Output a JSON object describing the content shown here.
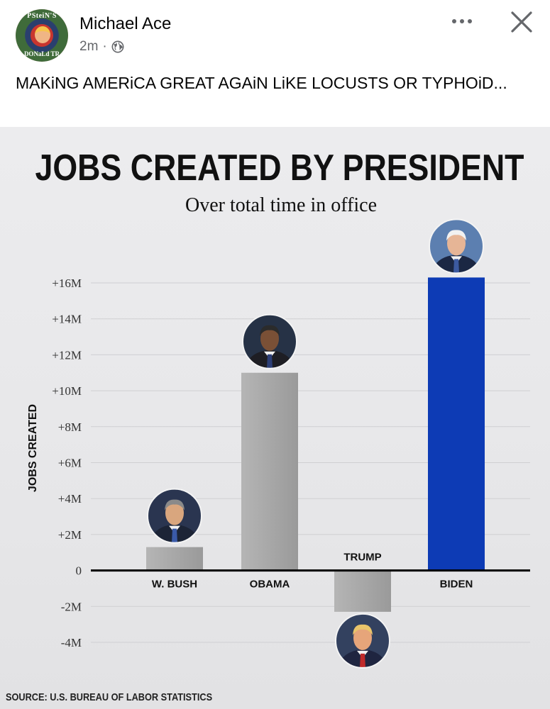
{
  "post": {
    "author": "Michael Ace",
    "time": "2m",
    "separator": "·",
    "audience_icon": "globe-icon",
    "text": "MAKiNG AMERiCA GREAT AGAiN LiKE LOCUSTS OR TYPHOiD...",
    "avatar": {
      "text_top": "PSteiN'S",
      "text_bottom": "DONaLd TR"
    }
  },
  "actions": {
    "more_icon": "more-icon",
    "close_icon": "close-icon"
  },
  "colors": {
    "gray_bar": "#a3a3a3",
    "biden_bar": "#0d3bb5",
    "gridline": "#cfcfd2",
    "axis": "#000000"
  },
  "chart_data": {
    "type": "bar",
    "title": "JOBS CREATED BY PRESIDENT",
    "subtitle": "Over total time in office",
    "ylabel": "JOBS CREATED",
    "xlabel": "",
    "source": "SOURCE: U.S. BUREAU OF LABOR STATISTICS",
    "ylim": [
      -4,
      16
    ],
    "yticks": [
      {
        "value": 16,
        "label": "+16M"
      },
      {
        "value": 14,
        "label": "+14M"
      },
      {
        "value": 12,
        "label": "+12M"
      },
      {
        "value": 10,
        "label": "+10M"
      },
      {
        "value": 8,
        "label": "+8M"
      },
      {
        "value": 6,
        "label": "+6M"
      },
      {
        "value": 4,
        "label": "+4M"
      },
      {
        "value": 2,
        "label": "+2M"
      },
      {
        "value": 0,
        "label": "0"
      },
      {
        "value": -2,
        "label": "-2M"
      },
      {
        "value": -4,
        "label": "-4M"
      }
    ],
    "grid": true,
    "categories": [
      "W. BUSH",
      "OBAMA",
      "TRUMP",
      "BIDEN"
    ],
    "values": [
      1.3,
      11.0,
      -2.3,
      16.3
    ],
    "colors": [
      "#a3a3a3",
      "#a3a3a3",
      "#a3a3a3",
      "#0d3bb5"
    ]
  }
}
